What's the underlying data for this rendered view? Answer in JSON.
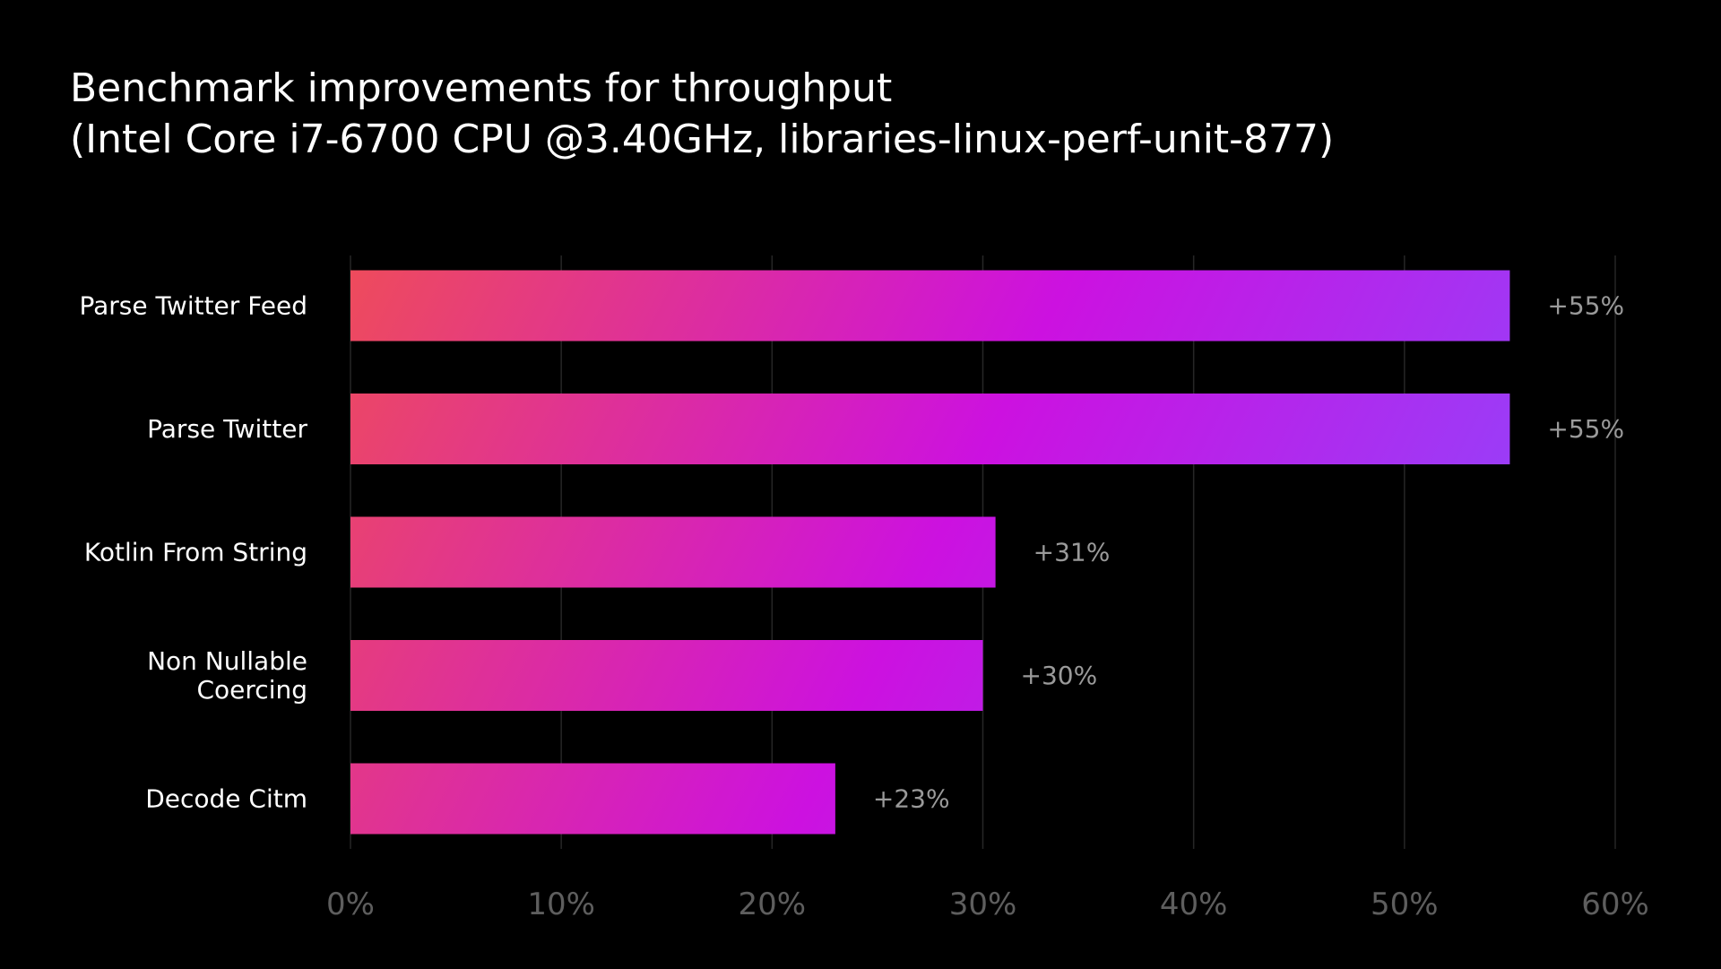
{
  "chart_data": {
    "type": "bar",
    "orientation": "horizontal",
    "title": "Benchmark improvements for throughput",
    "subtitle": "(Intel Core i7-6700 CPU @3.40GHz, libraries-linux-perf-unit-877)",
    "categories": [
      "Parse Twitter Feed",
      "Parse Twitter",
      "Kotlin From String",
      "Non Nullable Coercing",
      "Decode Citm"
    ],
    "category_lines": [
      [
        "Parse Twitter Feed"
      ],
      [
        "Parse Twitter"
      ],
      [
        "Kotlin From String"
      ],
      [
        "Non Nullable",
        "Coercing"
      ],
      [
        "Decode Citm"
      ]
    ],
    "values": [
      55,
      55,
      30.6,
      30,
      23
    ],
    "data_labels": [
      "+55%",
      "+55%",
      "+31%",
      "+30%",
      "+23%"
    ],
    "xlim": [
      0,
      60
    ],
    "xticks": [
      0,
      10,
      20,
      30,
      40,
      50,
      60
    ],
    "xtick_labels": [
      "0%",
      "10%",
      "20%",
      "30%",
      "40%",
      "50%",
      "60%"
    ],
    "xlabel": "",
    "ylabel": "",
    "grid": "vertical",
    "gradient_colors": [
      "#ee4b5c",
      "#cc11e0",
      "#8a4bff"
    ],
    "background": "#000000"
  }
}
